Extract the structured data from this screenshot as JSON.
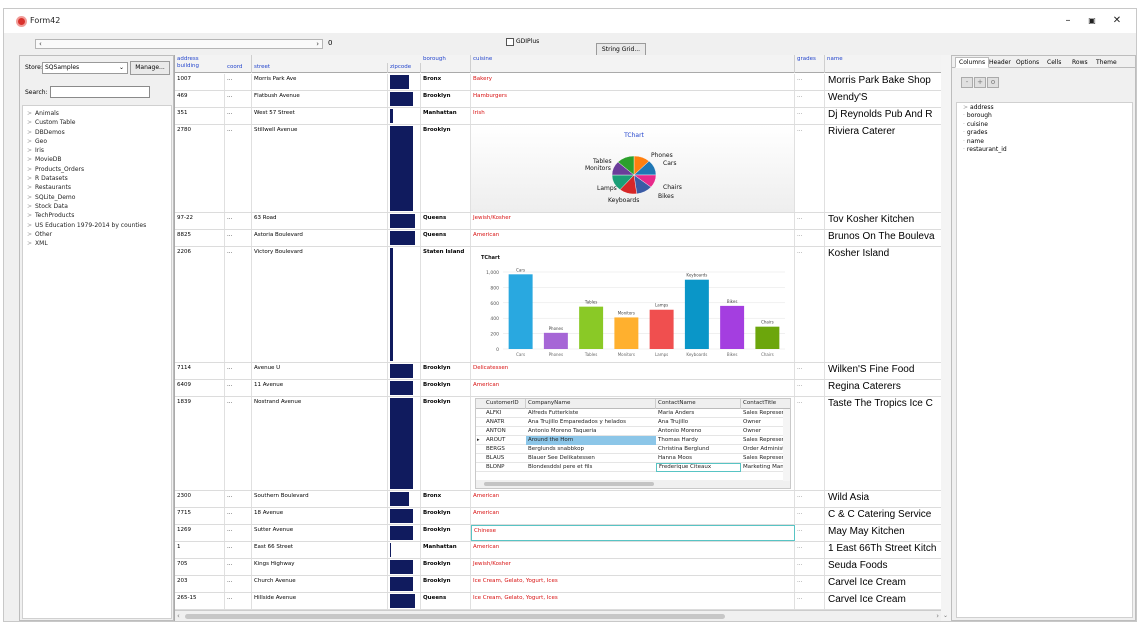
{
  "window": {
    "title": "Form42"
  },
  "toolbar": {
    "scroll_value": "0",
    "gdiplus_label": "GDIPlus",
    "stringgrid_button": "String Grid..."
  },
  "left_panel": {
    "store_label": "Store:",
    "store_value": "SQSamples",
    "manage_button": "Manage...",
    "search_label": "Search:",
    "tree": [
      "Animals",
      "Custom Table",
      "DBDemos",
      "Geo",
      "Iris",
      "MovieDB",
      "Products_Orders",
      "R Datasets",
      "Restaurants",
      "SQLite_Demo",
      "Stock Data",
      "TechProducts",
      "US Education 1979-2014 by counties",
      "Other",
      "XML"
    ]
  },
  "grid": {
    "headers": {
      "address": "address",
      "building": "building",
      "coord": "coord",
      "street": "street",
      "zipcode": "zipcode",
      "borough": "borough",
      "cuisine": "cuisine",
      "grades": "grades",
      "name": "name"
    },
    "rows": [
      {
        "building": "1007",
        "coord": "...",
        "street": "Morris Park Ave",
        "zip": 0.65,
        "borough": "Bronx",
        "cuisine": "Bakery",
        "grades": "...",
        "name": "Morris Park Bake Shop"
      },
      {
        "building": "469",
        "coord": "...",
        "street": "Flatbush Avenue",
        "zip": 0.78,
        "borough": "Brooklyn",
        "cuisine": "Hamburgers",
        "grades": "...",
        "name": "Wendy'S"
      },
      {
        "building": "351",
        "coord": "...",
        "street": "West   57 Street",
        "zip": 0.1,
        "borough": "Manhattan",
        "cuisine": "Irish",
        "grades": "...",
        "name": "Dj Reynolds Pub And R"
      },
      {
        "building": "2780",
        "coord": "...",
        "street": "Stillwell Avenue",
        "zip": 0.78,
        "borough": "Brooklyn",
        "cuisine": "",
        "grades": "...",
        "name": "Riviera Caterer"
      },
      {
        "building": "97-22",
        "coord": "...",
        "street": "63 Road",
        "zip": 0.85,
        "borough": "Queens",
        "cuisine": "Jewish/Kosher",
        "grades": "...",
        "name": "Tov Kosher Kitchen"
      },
      {
        "building": "8825",
        "coord": "...",
        "street": "Astoria Boulevard",
        "zip": 0.85,
        "borough": "Queens",
        "cuisine": "American",
        "grades": "...",
        "name": "Brunos On The Bouleva"
      },
      {
        "building": "2206",
        "coord": "...",
        "street": "Victory Boulevard",
        "zip": 0.12,
        "borough": "Staten Island",
        "cuisine": "",
        "grades": "...",
        "name": "Kosher Island"
      },
      {
        "building": "7114",
        "coord": "...",
        "street": "Avenue U",
        "zip": 0.78,
        "borough": "Brooklyn",
        "cuisine": "Delicatessen",
        "grades": "...",
        "name": "Wilken'S Fine Food"
      },
      {
        "building": "6409",
        "coord": "...",
        "street": "11 Avenue",
        "zip": 0.78,
        "borough": "Brooklyn",
        "cuisine": "American",
        "grades": "...",
        "name": "Regina Caterers"
      },
      {
        "building": "1839",
        "coord": "...",
        "street": "Nostrand Avenue",
        "zip": 0.78,
        "borough": "Brooklyn",
        "cuisine": "",
        "grades": "...",
        "name": "Taste The Tropics Ice C"
      },
      {
        "building": "2300",
        "coord": "...",
        "street": "Southern Boulevard",
        "zip": 0.65,
        "borough": "Bronx",
        "cuisine": "American",
        "grades": "...",
        "name": "Wild Asia"
      },
      {
        "building": "7715",
        "coord": "...",
        "street": "18 Avenue",
        "zip": 0.78,
        "borough": "Brooklyn",
        "cuisine": "American",
        "grades": "...",
        "name": "C & C Catering Service"
      },
      {
        "building": "1269",
        "coord": "...",
        "street": "Sutter Avenue",
        "zip": 0.78,
        "borough": "Brooklyn",
        "cuisine": "Chinese",
        "grades": "...",
        "name": "May May Kitchen"
      },
      {
        "building": "1",
        "coord": "...",
        "street": "East   66 Street",
        "zip": 0.05,
        "borough": "Manhattan",
        "cuisine": "American",
        "grades": "...",
        "name": "1 East 66Th Street Kitch"
      },
      {
        "building": "705",
        "coord": "...",
        "street": "Kings Highway",
        "zip": 0.78,
        "borough": "Brooklyn",
        "cuisine": "Jewish/Kosher",
        "grades": "...",
        "name": "Seuda Foods"
      },
      {
        "building": "203",
        "coord": "...",
        "street": "Church Avenue",
        "zip": 0.78,
        "borough": "Brooklyn",
        "cuisine": "Ice Cream, Gelato, Yogurt, Ices",
        "grades": "...",
        "name": "Carvel Ice Cream"
      },
      {
        "building": "265-15",
        "coord": "...",
        "street": "Hillside Avenue",
        "zip": 0.85,
        "borough": "Queens",
        "cuisine": "Ice Cream, Gelato, Yogurt, Ices",
        "grades": "...",
        "name": "Carvel Ice Cream"
      }
    ]
  },
  "pie_chart": {
    "title": "TChart",
    "labels": [
      "Tables",
      "Phones",
      "Cars",
      "Monitors",
      "Lamps",
      "Chairs",
      "Bikes",
      "Keyboards"
    ],
    "colors": [
      "#ff7f0e",
      "#1f77b4",
      "#e7298a",
      "#3b5ba5",
      "#d62728",
      "#1b9e77",
      "#6a3d9a",
      "#2ca02c"
    ]
  },
  "chart_data": {
    "type": "bar",
    "title": "TChart",
    "categories": [
      "Cars",
      "Phones",
      "Tables",
      "Monitors",
      "Lamps",
      "Keyboards",
      "Bikes",
      "Chairs"
    ],
    "values": [
      970,
      210,
      550,
      410,
      510,
      900,
      560,
      290
    ],
    "colors": [
      "#29a8e0",
      "#a666d6",
      "#8ac926",
      "#ffb02e",
      "#f04f4f",
      "#0a96c8",
      "#a43ee0",
      "#6ca60c"
    ],
    "ylim": [
      0,
      1000
    ],
    "yticks": [
      "1,000",
      "800",
      "600",
      "400",
      "200",
      "0"
    ]
  },
  "db_grid": {
    "columns": [
      "CustomerID",
      "CompanyName",
      "ContactName",
      "ContactTitle"
    ],
    "rows": [
      [
        "ALFKI",
        "Alfreds Futterkiste",
        "Maria Anders",
        "Sales Represen"
      ],
      [
        "ANATR",
        "Ana Trujillo Emparedados y helados",
        "Ana Trujillo",
        "Owner"
      ],
      [
        "ANTON",
        "Antonio Moreno Taqueria",
        "Antonio Moreno",
        "Owner"
      ],
      [
        "AROUT",
        "Around the Horn",
        "Thomas Hardy",
        "Sales Represen"
      ],
      [
        "BERGS",
        "Berglunds snabbkop",
        "Christina Berglund",
        "Order Administ"
      ],
      [
        "BLAUS",
        "Blauer See Delikatessen",
        "Hanna Moos",
        "Sales Represen"
      ],
      [
        "BLONP",
        "Blondesddsl pere et fils",
        "Frederique Citeaux",
        "Marketing Mana"
      ]
    ]
  },
  "right_panel": {
    "tabs": [
      "Columns",
      "Header",
      "Options",
      "Cells",
      "Rows",
      "Theme"
    ],
    "tools": [
      "-",
      "+",
      "o"
    ],
    "columns_tree": [
      "address",
      "borough",
      "cuisine",
      "grades",
      "name",
      "restaurant_id"
    ]
  }
}
